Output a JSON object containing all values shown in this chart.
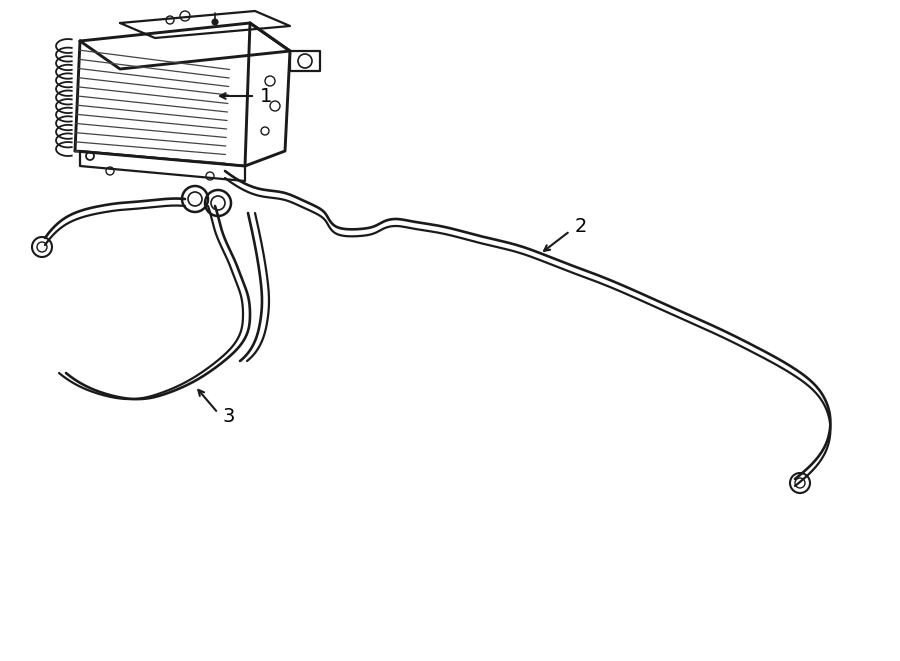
{
  "background_color": "#ffffff",
  "line_color": "#1a1a1a",
  "lw": 1.6,
  "label_fontsize": 13,
  "label_color": "#000000"
}
